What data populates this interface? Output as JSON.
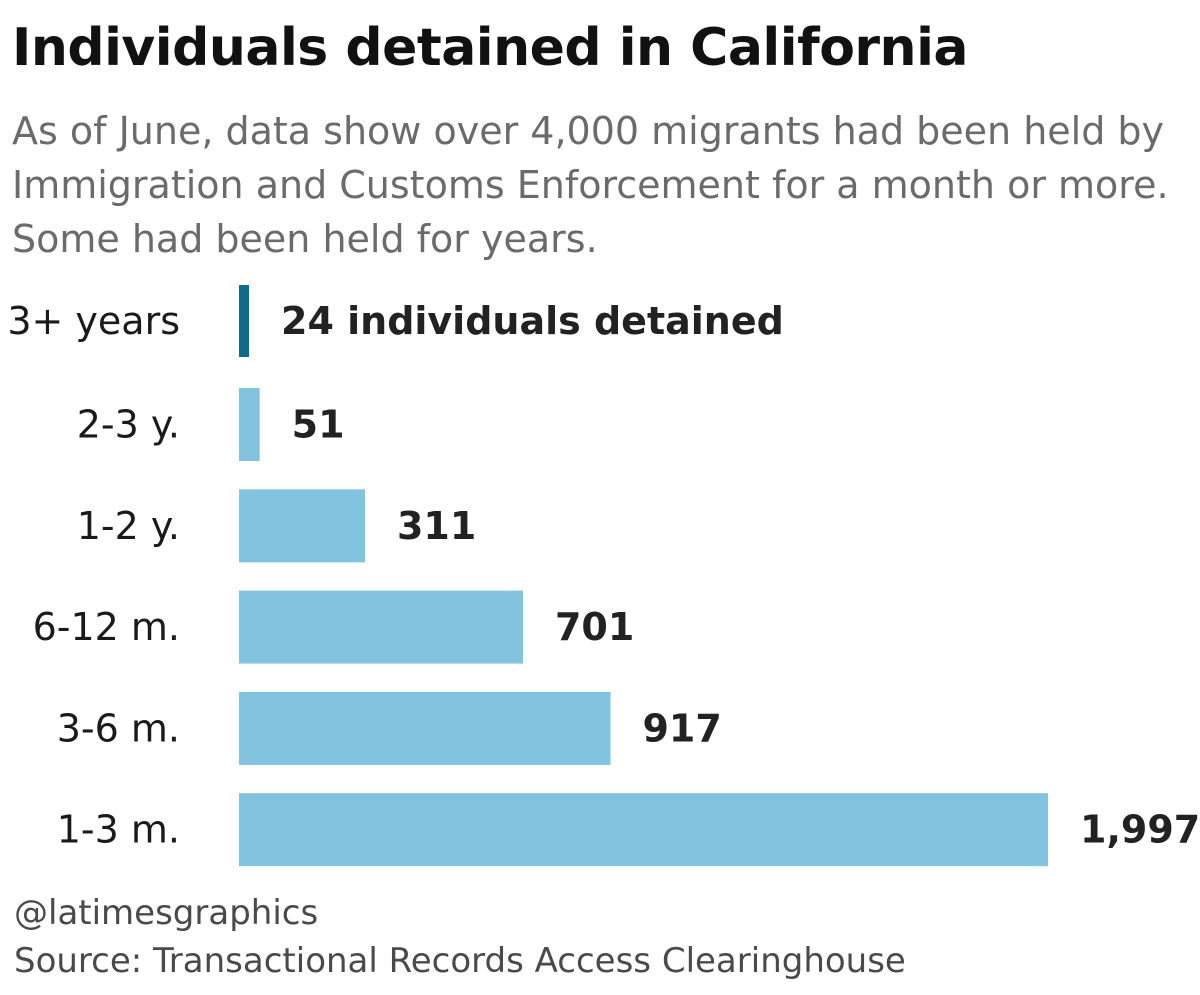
{
  "title": "Individuals detained in California",
  "subtitle": "As of June, data show over 4,000 migrants had been held by Immigration and Customs Enforcement for a month or more. Some had been held for years.",
  "credit": "@latimesgraphics",
  "source": "Source: Transactional Records Access Clearinghouse",
  "colors": {
    "bar": "#82c4e0",
    "highlight_bar": "#0f6b8c",
    "value_text": "#222222"
  },
  "chart_data": {
    "type": "bar",
    "orientation": "horizontal",
    "categories": [
      "3+ years",
      "2-3 y.",
      "1-2 y.",
      "6-12 m.",
      "3-6 m.",
      "1-3 m."
    ],
    "values": [
      24,
      51,
      311,
      701,
      917,
      1997
    ],
    "value_labels": [
      "24 individuals detained",
      "51",
      "311",
      "701",
      "917",
      "1,997"
    ],
    "highlight_index": 0,
    "xlim": [
      0,
      1997
    ],
    "grid": false,
    "legend": "none"
  }
}
